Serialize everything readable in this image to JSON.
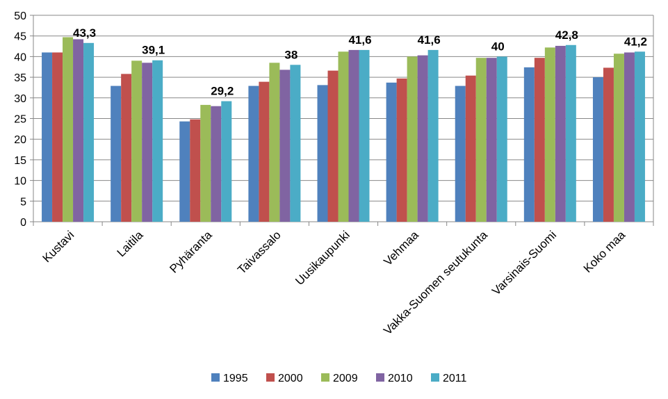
{
  "chart_data": {
    "type": "bar",
    "title": "",
    "xlabel": "",
    "ylabel": "",
    "ylim": [
      0,
      50
    ],
    "yticks": [
      0,
      5,
      10,
      15,
      20,
      25,
      30,
      35,
      40,
      45,
      50
    ],
    "grid": true,
    "legend_position": "bottom",
    "categories": [
      "Kustavi",
      "Laitila",
      "Pyhäranta",
      "Taivassalo",
      "Uusikaupunki",
      "Vehmaa",
      "Vakka-Suomen seutukunta",
      "Varsinais-Suomi",
      "Koko maa"
    ],
    "series": [
      {
        "name": "1995",
        "color": "#4F81BD",
        "values": [
          41.0,
          32.9,
          24.3,
          32.9,
          33.1,
          33.7,
          32.9,
          37.4,
          35.0
        ]
      },
      {
        "name": "2000",
        "color": "#C0504D",
        "values": [
          41.0,
          35.8,
          24.8,
          33.9,
          36.6,
          34.7,
          35.4,
          39.7,
          37.3
        ]
      },
      {
        "name": "2009",
        "color": "#9BBB59",
        "values": [
          44.7,
          39.0,
          28.3,
          38.5,
          41.2,
          40.0,
          39.7,
          42.2,
          40.7
        ]
      },
      {
        "name": "2010",
        "color": "#8064A2",
        "values": [
          44.2,
          38.5,
          28.0,
          36.8,
          41.6,
          40.3,
          39.7,
          42.6,
          41.0
        ]
      },
      {
        "name": "2011",
        "color": "#4BACC6",
        "values": [
          43.3,
          39.1,
          29.2,
          38.0,
          41.6,
          41.6,
          40.0,
          42.8,
          41.2
        ]
      }
    ],
    "data_labels": {
      "series": "2011",
      "texts": [
        "43,3",
        "39,1",
        "29,2",
        "38",
        "41,6",
        "41,6",
        "40",
        "42,8",
        "41,2"
      ]
    }
  }
}
